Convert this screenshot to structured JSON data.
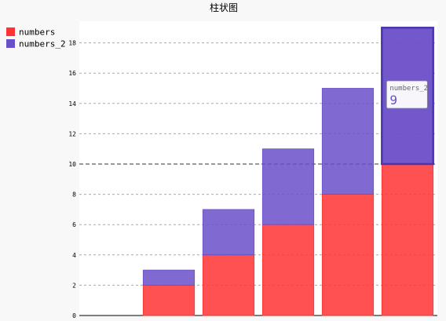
{
  "chart_data": {
    "type": "bar",
    "stacked": true,
    "title": "柱状图",
    "categories": [
      "",
      "",
      "",
      "",
      "",
      ""
    ],
    "series": [
      {
        "name": "numbers",
        "values": [
          0,
          2,
          4,
          6,
          8,
          10
        ],
        "color": "#ff3333"
      },
      {
        "name": "numbers_2",
        "values": [
          0,
          1,
          3,
          5,
          7,
          9
        ],
        "color": "#6a4fc8"
      }
    ],
    "ylim": [
      0,
      19
    ],
    "yticks": [
      0,
      2,
      4,
      6,
      8,
      10,
      12,
      14,
      16,
      18
    ],
    "grid": true,
    "legend": "top-left",
    "highlight": {
      "category_index": 5,
      "series_index": 1,
      "reference_value": 10
    },
    "tooltip": {
      "series": "numbers_2",
      "value": "9"
    }
  }
}
